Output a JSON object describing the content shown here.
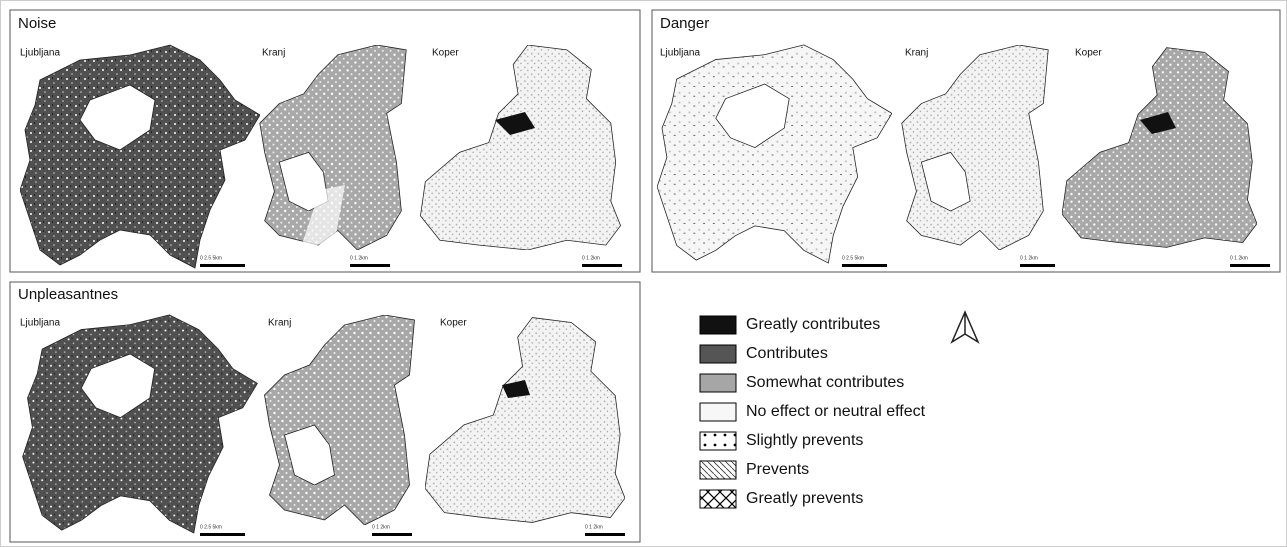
{
  "panels": [
    {
      "title": "Noise",
      "cities": [
        "Ljubljana",
        "Kranj",
        "Koper"
      ],
      "scales": [
        "0 2.5 5km",
        "0 1 2km",
        "0 1 2km"
      ]
    },
    {
      "title": "Danger",
      "cities": [
        "Ljubljana",
        "Kranj",
        "Koper"
      ],
      "scales": [
        "0 2.5 5km",
        "0 1 2km",
        "0 1 2km"
      ]
    },
    {
      "title": "Unpleasantnes",
      "cities": [
        "Ljubljana",
        "Kranj",
        "Koper"
      ],
      "scales": [
        "0 2.5 5km",
        "0 1 2km",
        "0 1 2km"
      ]
    }
  ],
  "legend": [
    "Greatly contributes",
    "Contributes",
    "Somewhat contributes",
    "No effect or neutral effect",
    "Slightly prevents",
    "Prevents",
    "Greatly prevents"
  ]
}
